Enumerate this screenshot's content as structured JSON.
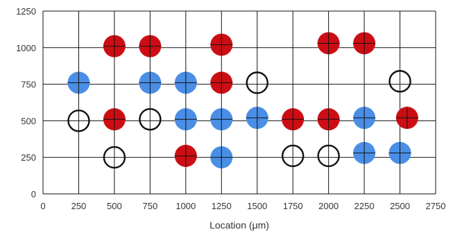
{
  "chart_data": {
    "type": "scatter",
    "title": "",
    "xlabel": "Location (μm)",
    "ylabel": "",
    "xlim": [
      0,
      2750
    ],
    "ylim": [
      0,
      1250
    ],
    "x_ticks": [
      "0",
      "250",
      "500",
      "750",
      "1000",
      "1250",
      "1500",
      "1750",
      "2000",
      "2250",
      "2500",
      "2750"
    ],
    "y_ticks": [
      "0",
      "250",
      "500",
      "750",
      "1000",
      "1250"
    ],
    "grid": true,
    "legend": "none",
    "series": [
      {
        "color": "#cc0e14",
        "style": "filled",
        "points": [
          [
            500,
            1010
          ],
          [
            750,
            1010
          ],
          [
            1250,
            1020
          ],
          [
            2000,
            1030
          ],
          [
            2250,
            1030
          ],
          [
            1250,
            760
          ],
          [
            500,
            510
          ],
          [
            1750,
            510
          ],
          [
            2000,
            510
          ],
          [
            2550,
            520
          ],
          [
            1000,
            260
          ]
        ]
      },
      {
        "color": "#4a8ee6",
        "style": "filled",
        "points": [
          [
            250,
            760
          ],
          [
            750,
            760
          ],
          [
            1000,
            760
          ],
          [
            1000,
            510
          ],
          [
            1250,
            510
          ],
          [
            1500,
            520
          ],
          [
            2250,
            520
          ],
          [
            1250,
            250
          ],
          [
            2250,
            280
          ],
          [
            2500,
            280
          ]
        ]
      },
      {
        "color": "#111111",
        "style": "hollow",
        "points": [
          [
            1500,
            760
          ],
          [
            2500,
            770
          ],
          [
            250,
            500
          ],
          [
            750,
            510
          ],
          [
            500,
            250
          ],
          [
            1750,
            260
          ],
          [
            2000,
            260
          ]
        ]
      }
    ]
  }
}
